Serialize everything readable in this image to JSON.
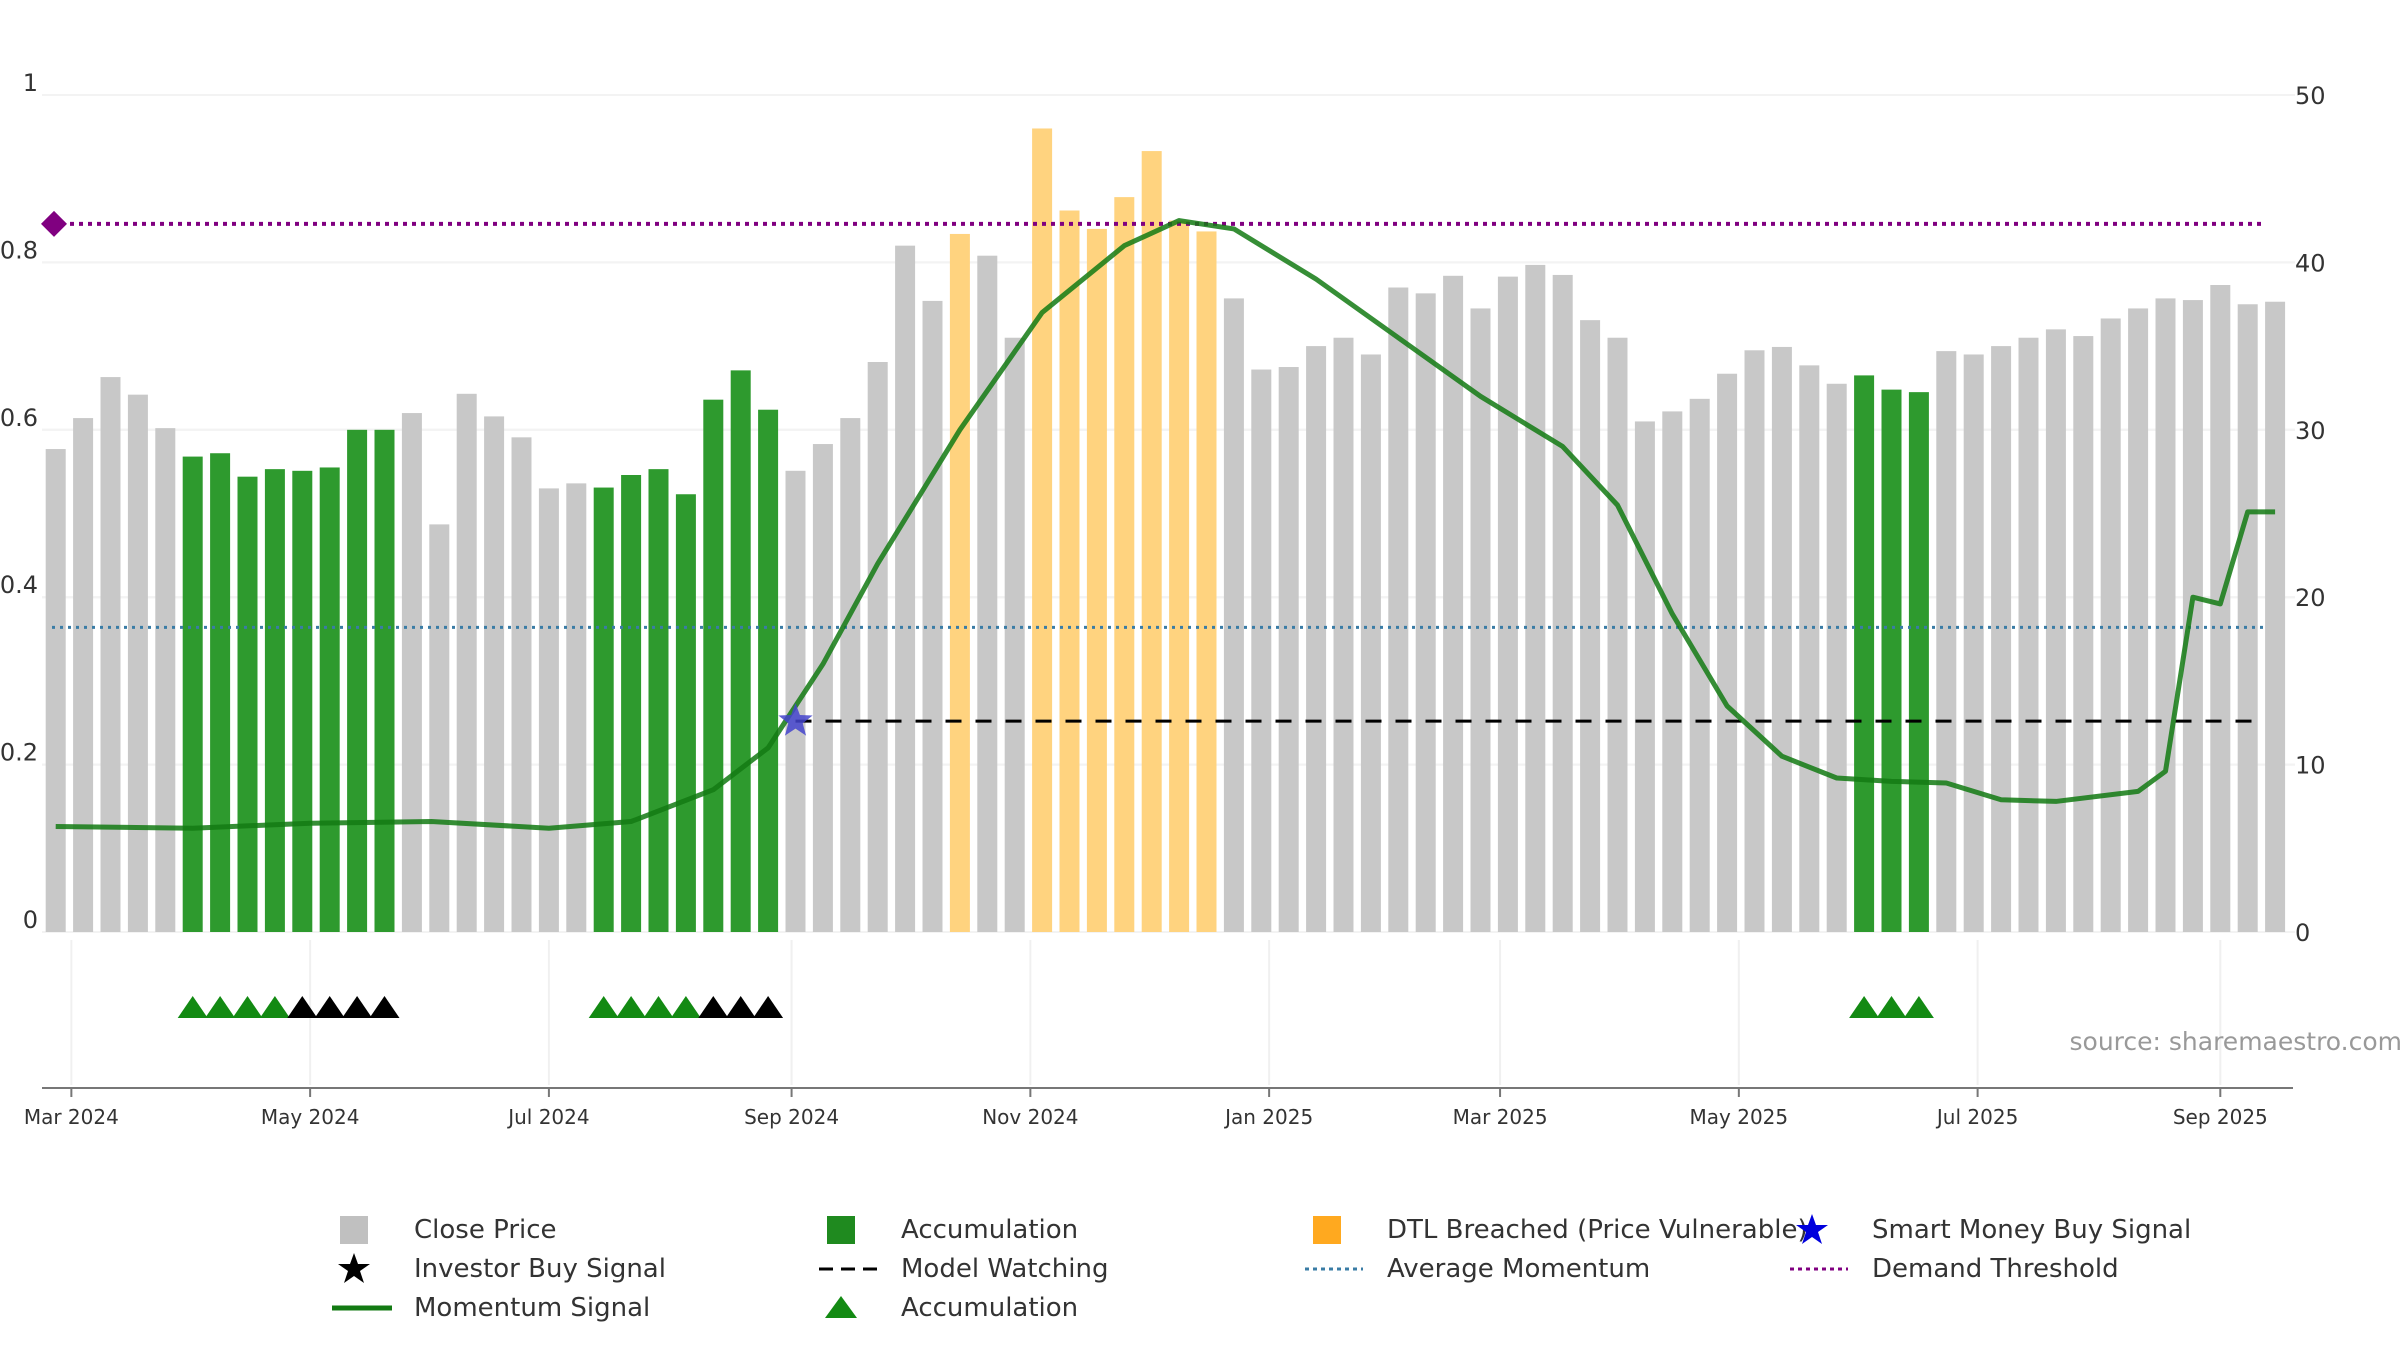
{
  "chart_data": {
    "type": "bar",
    "title": "",
    "source": "source: sharemaestro.com",
    "x_ticks": [
      "Mar 2024",
      "May 2024",
      "Jul 2024",
      "Sep 2024",
      "Nov 2024",
      "Jan 2025",
      "Mar 2025",
      "May 2025",
      "Jul 2025",
      "Sep 2025"
    ],
    "y_left_ticks": [
      "0",
      "0.2",
      "0.4",
      "0.6",
      "0.8",
      "1"
    ],
    "y_right_ticks": [
      "0",
      "10",
      "20",
      "30",
      "40",
      "50"
    ],
    "y_left_range": [
      0,
      1
    ],
    "y_right_range": [
      0,
      50
    ],
    "grid": true,
    "legend_position": "bottom",
    "close_price": [
      {
        "date": "2024-02-26",
        "value": 0.577,
        "state": "normal"
      },
      {
        "date": "2024-03-04",
        "value": 0.614,
        "state": "normal"
      },
      {
        "date": "2024-03-11",
        "value": 0.663,
        "state": "normal"
      },
      {
        "date": "2024-03-18",
        "value": 0.642,
        "state": "normal"
      },
      {
        "date": "2024-03-25",
        "value": 0.602,
        "state": "normal"
      },
      {
        "date": "2024-04-01",
        "value": 0.568,
        "state": "accumulation"
      },
      {
        "date": "2024-04-08",
        "value": 0.572,
        "state": "accumulation"
      },
      {
        "date": "2024-04-15",
        "value": 0.544,
        "state": "accumulation"
      },
      {
        "date": "2024-04-22",
        "value": 0.553,
        "state": "accumulation"
      },
      {
        "date": "2024-04-29",
        "value": 0.551,
        "state": "accumulation"
      },
      {
        "date": "2024-05-06",
        "value": 0.555,
        "state": "accumulation"
      },
      {
        "date": "2024-05-13",
        "value": 0.6,
        "state": "accumulation"
      },
      {
        "date": "2024-05-20",
        "value": 0.6,
        "state": "accumulation"
      },
      {
        "date": "2024-05-27",
        "value": 0.62,
        "state": "normal"
      },
      {
        "date": "2024-06-03",
        "value": 0.487,
        "state": "normal"
      },
      {
        "date": "2024-06-10",
        "value": 0.643,
        "state": "normal"
      },
      {
        "date": "2024-06-17",
        "value": 0.616,
        "state": "normal"
      },
      {
        "date": "2024-06-24",
        "value": 0.591,
        "state": "normal"
      },
      {
        "date": "2024-07-01",
        "value": 0.53,
        "state": "normal"
      },
      {
        "date": "2024-07-08",
        "value": 0.536,
        "state": "normal"
      },
      {
        "date": "2024-07-15",
        "value": 0.531,
        "state": "accumulation"
      },
      {
        "date": "2024-07-22",
        "value": 0.546,
        "state": "accumulation"
      },
      {
        "date": "2024-07-29",
        "value": 0.553,
        "state": "accumulation"
      },
      {
        "date": "2024-08-05",
        "value": 0.523,
        "state": "accumulation"
      },
      {
        "date": "2024-08-12",
        "value": 0.636,
        "state": "accumulation"
      },
      {
        "date": "2024-08-19",
        "value": 0.671,
        "state": "accumulation"
      },
      {
        "date": "2024-08-26",
        "value": 0.624,
        "state": "accumulation"
      },
      {
        "date": "2024-09-02",
        "value": 0.551,
        "state": "normal"
      },
      {
        "date": "2024-09-09",
        "value": 0.583,
        "state": "normal"
      },
      {
        "date": "2024-09-16",
        "value": 0.614,
        "state": "normal"
      },
      {
        "date": "2024-09-23",
        "value": 0.681,
        "state": "normal"
      },
      {
        "date": "2024-09-30",
        "value": 0.82,
        "state": "normal"
      },
      {
        "date": "2024-10-07",
        "value": 0.754,
        "state": "normal"
      },
      {
        "date": "2024-10-14",
        "value": 0.834,
        "state": "dtl"
      },
      {
        "date": "2024-10-21",
        "value": 0.808,
        "state": "normal"
      },
      {
        "date": "2024-10-28",
        "value": 0.71,
        "state": "normal"
      },
      {
        "date": "2024-11-04",
        "value": 0.96,
        "state": "dtl"
      },
      {
        "date": "2024-11-11",
        "value": 0.862,
        "state": "dtl"
      },
      {
        "date": "2024-11-18",
        "value": 0.84,
        "state": "dtl"
      },
      {
        "date": "2024-11-25",
        "value": 0.878,
        "state": "dtl"
      },
      {
        "date": "2024-12-02",
        "value": 0.933,
        "state": "dtl"
      },
      {
        "date": "2024-12-09",
        "value": 0.85,
        "state": "dtl"
      },
      {
        "date": "2024-12-16",
        "value": 0.837,
        "state": "dtl"
      },
      {
        "date": "2024-12-23",
        "value": 0.757,
        "state": "normal"
      },
      {
        "date": "2024-12-30",
        "value": 0.672,
        "state": "normal"
      },
      {
        "date": "2025-01-06",
        "value": 0.675,
        "state": "normal"
      },
      {
        "date": "2025-01-13",
        "value": 0.7,
        "state": "normal"
      },
      {
        "date": "2025-01-20",
        "value": 0.71,
        "state": "normal"
      },
      {
        "date": "2025-01-27",
        "value": 0.69,
        "state": "normal"
      },
      {
        "date": "2025-02-03",
        "value": 0.77,
        "state": "normal"
      },
      {
        "date": "2025-02-10",
        "value": 0.763,
        "state": "normal"
      },
      {
        "date": "2025-02-17",
        "value": 0.784,
        "state": "normal"
      },
      {
        "date": "2025-02-24",
        "value": 0.745,
        "state": "normal"
      },
      {
        "date": "2025-03-03",
        "value": 0.783,
        "state": "normal"
      },
      {
        "date": "2025-03-10",
        "value": 0.797,
        "state": "normal"
      },
      {
        "date": "2025-03-17",
        "value": 0.785,
        "state": "normal"
      },
      {
        "date": "2025-03-24",
        "value": 0.731,
        "state": "normal"
      },
      {
        "date": "2025-03-31",
        "value": 0.71,
        "state": "normal"
      },
      {
        "date": "2025-04-07",
        "value": 0.61,
        "state": "normal"
      },
      {
        "date": "2025-04-14",
        "value": 0.622,
        "state": "normal"
      },
      {
        "date": "2025-04-21",
        "value": 0.637,
        "state": "normal"
      },
      {
        "date": "2025-04-28",
        "value": 0.667,
        "state": "normal"
      },
      {
        "date": "2025-05-05",
        "value": 0.695,
        "state": "normal"
      },
      {
        "date": "2025-05-12",
        "value": 0.699,
        "state": "normal"
      },
      {
        "date": "2025-05-19",
        "value": 0.677,
        "state": "normal"
      },
      {
        "date": "2025-05-26",
        "value": 0.655,
        "state": "normal"
      },
      {
        "date": "2025-06-02",
        "value": 0.665,
        "state": "accumulation"
      },
      {
        "date": "2025-06-09",
        "value": 0.648,
        "state": "accumulation"
      },
      {
        "date": "2025-06-16",
        "value": 0.645,
        "state": "accumulation"
      },
      {
        "date": "2025-06-23",
        "value": 0.694,
        "state": "normal"
      },
      {
        "date": "2025-06-30",
        "value": 0.69,
        "state": "normal"
      },
      {
        "date": "2025-07-07",
        "value": 0.7,
        "state": "normal"
      },
      {
        "date": "2025-07-14",
        "value": 0.71,
        "state": "normal"
      },
      {
        "date": "2025-07-21",
        "value": 0.72,
        "state": "normal"
      },
      {
        "date": "2025-07-28",
        "value": 0.712,
        "state": "normal"
      },
      {
        "date": "2025-08-04",
        "value": 0.733,
        "state": "normal"
      },
      {
        "date": "2025-08-11",
        "value": 0.745,
        "state": "normal"
      },
      {
        "date": "2025-08-18",
        "value": 0.757,
        "state": "normal"
      },
      {
        "date": "2025-08-25",
        "value": 0.755,
        "state": "normal"
      },
      {
        "date": "2025-09-01",
        "value": 0.773,
        "state": "normal"
      },
      {
        "date": "2025-09-08",
        "value": 0.75,
        "state": "normal"
      },
      {
        "date": "2025-09-15",
        "value": 0.753,
        "state": "normal"
      }
    ],
    "momentum_signal": [
      {
        "date": "2024-02-26",
        "value": 6.3
      },
      {
        "date": "2024-04-01",
        "value": 6.2
      },
      {
        "date": "2024-05-01",
        "value": 6.5
      },
      {
        "date": "2024-06-01",
        "value": 6.6
      },
      {
        "date": "2024-07-01",
        "value": 6.2
      },
      {
        "date": "2024-07-22",
        "value": 6.6
      },
      {
        "date": "2024-08-12",
        "value": 8.5
      },
      {
        "date": "2024-08-26",
        "value": 11.0
      },
      {
        "date": "2024-09-09",
        "value": 16.0
      },
      {
        "date": "2024-09-23",
        "value": 22.0
      },
      {
        "date": "2024-10-14",
        "value": 30.0
      },
      {
        "date": "2024-11-04",
        "value": 37.0
      },
      {
        "date": "2024-11-25",
        "value": 41.0
      },
      {
        "date": "2024-12-09",
        "value": 42.5
      },
      {
        "date": "2024-12-23",
        "value": 42.0
      },
      {
        "date": "2025-01-13",
        "value": 39.0
      },
      {
        "date": "2025-02-03",
        "value": 35.5
      },
      {
        "date": "2025-02-24",
        "value": 32.0
      },
      {
        "date": "2025-03-17",
        "value": 29.0
      },
      {
        "date": "2025-03-31",
        "value": 25.5
      },
      {
        "date": "2025-04-14",
        "value": 19.0
      },
      {
        "date": "2025-04-28",
        "value": 13.5
      },
      {
        "date": "2025-05-12",
        "value": 10.5
      },
      {
        "date": "2025-05-26",
        "value": 9.2
      },
      {
        "date": "2025-06-09",
        "value": 9.0
      },
      {
        "date": "2025-06-23",
        "value": 8.9
      },
      {
        "date": "2025-07-07",
        "value": 7.9
      },
      {
        "date": "2025-07-21",
        "value": 7.8
      },
      {
        "date": "2025-08-11",
        "value": 8.4
      },
      {
        "date": "2025-08-18",
        "value": 9.6
      },
      {
        "date": "2025-08-25",
        "value": 20.0
      },
      {
        "date": "2025-09-01",
        "value": 19.6
      },
      {
        "date": "2025-09-08",
        "value": 25.1
      },
      {
        "date": "2025-09-15",
        "value": 25.1
      }
    ],
    "demand_threshold": 42.3,
    "average_momentum": 18.2,
    "model_watching": {
      "value": 12.6,
      "from": "2024-09-02",
      "to": "2025-09-15"
    },
    "smart_money_buy_signal": {
      "date": "2024-09-02",
      "value": 12.6
    },
    "accumulation_markers": [
      "2024-04-01",
      "2024-04-08",
      "2024-04-15",
      "2024-04-22",
      "2024-07-15",
      "2024-07-22",
      "2024-07-29",
      "2024-08-05",
      "2025-06-02",
      "2025-06-09",
      "2025-06-16"
    ],
    "investor_buy_markers": [
      "2024-04-29",
      "2024-05-06",
      "2024-05-13",
      "2024-05-20",
      "2024-08-12",
      "2024-08-19",
      "2024-08-26"
    ],
    "colors": {
      "close_price": "#c8c8c8",
      "accumulation": "#2e9a2e",
      "dtl": "#ffd37f",
      "momentum": "#137a13",
      "demand": "#800080",
      "avg_momentum": "#3a7ca5",
      "model_watching": "#000000",
      "smart_money": "#4444cc",
      "triangle_green": "#138a13",
      "triangle_black": "#000000"
    }
  },
  "legend": {
    "close_price": "Close Price",
    "accumulation_bar": "Accumulation",
    "dtl": "DTL Breached (Price Vulnerable)",
    "smart_money": "Smart Money Buy Signal",
    "investor_buy": "Investor Buy Signal",
    "model_watching": "Model Watching",
    "average_momentum": "Average Momentum",
    "demand_threshold": "Demand Threshold",
    "momentum_signal": "Momentum Signal",
    "accumulation_marker": "Accumulation"
  }
}
